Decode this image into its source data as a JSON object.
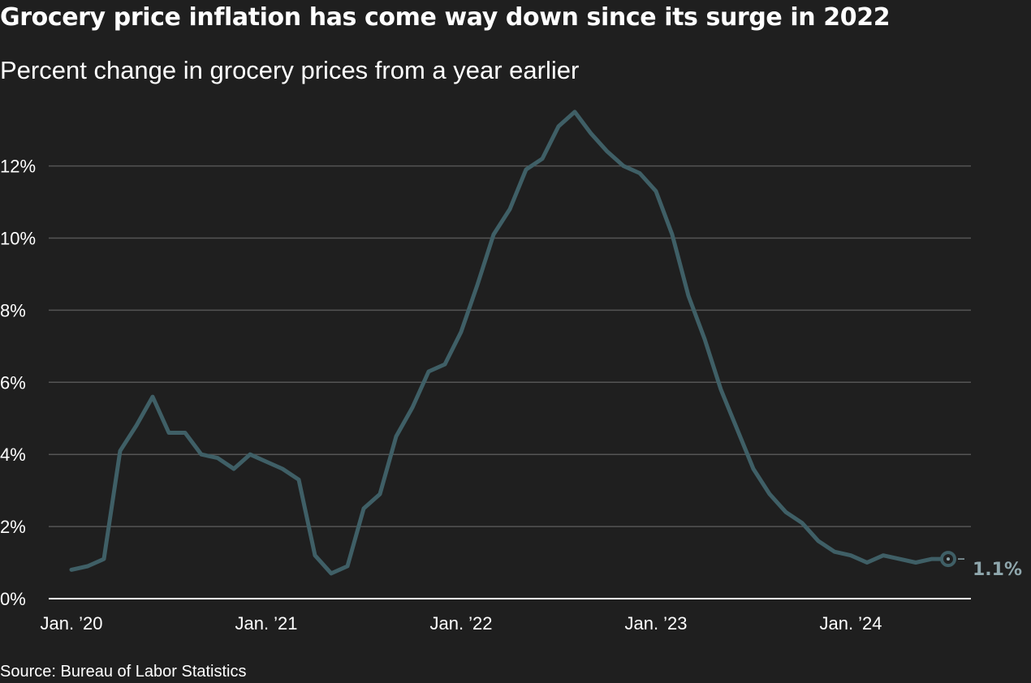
{
  "header": {
    "title": "Grocery price inflation has come way down since its surge in 2022",
    "subtitle": "Percent change in grocery prices from a year earlier"
  },
  "footer": {
    "source": "Source: Bureau of Labor Statistics"
  },
  "colors": {
    "background": "#1f1f1f",
    "line": "#3f5f66",
    "grid": "#555555",
    "axis": "#ffffff",
    "end_label": "#8fa7ad"
  },
  "chart_data": {
    "type": "line",
    "title": "Grocery price inflation has come way down since its surge in 2022",
    "subtitle": "Percent change in grocery prices from a year earlier",
    "xlabel": "",
    "ylabel": "",
    "x_tick_labels": [
      "Jan. ’20",
      "Jan. ’21",
      "Jan. ’22",
      "Jan. ’23",
      "Jan. ’24"
    ],
    "y_tick_labels": [
      "0%",
      "2%",
      "4%",
      "6%",
      "8%",
      "10%",
      "12%"
    ],
    "y_ticks": [
      0,
      2,
      4,
      6,
      8,
      10,
      12
    ],
    "ylim": [
      0,
      13.5
    ],
    "grid": true,
    "end_label": "1.1%",
    "series": [
      {
        "start": "2020-01",
        "frequency": "monthly",
        "values": [
          0.8,
          0.9,
          1.1,
          4.1,
          4.8,
          5.6,
          4.6,
          4.6,
          4.0,
          3.9,
          3.6,
          4.0,
          3.8,
          3.6,
          3.3,
          1.2,
          0.7,
          0.9,
          2.5,
          2.9,
          4.5,
          5.3,
          6.3,
          6.5,
          7.4,
          8.7,
          10.1,
          10.8,
          11.9,
          12.2,
          13.1,
          13.5,
          12.9,
          12.4,
          12.0,
          11.8,
          11.3,
          10.1,
          8.4,
          7.2,
          5.8,
          4.7,
          3.6,
          2.9,
          2.4,
          2.1,
          1.6,
          1.3,
          1.2,
          1.0,
          1.2,
          1.1,
          1.0,
          1.1,
          1.1
        ]
      }
    ]
  }
}
